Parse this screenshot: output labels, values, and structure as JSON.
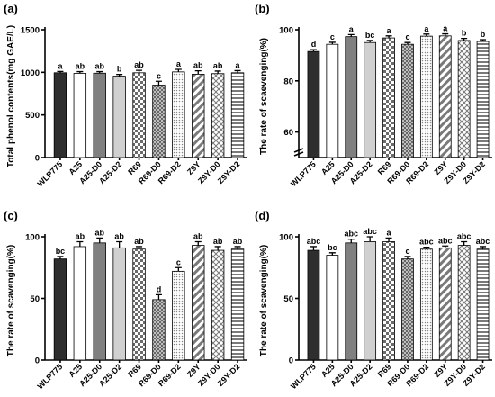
{
  "figure": {
    "colors": {
      "WLP775": "#2e2e2e",
      "A25": "#ffffff",
      "A25-D0": "#808080",
      "A25-D2": "#d0d0d0",
      "R69": "#b5b5b5",
      "R69-D0": "#c8c8c8",
      "R69-D2": "#e4e4e4",
      "Z9Y": "#ffffff",
      "Z9Y-D0": "#ffffff",
      "Z9Y-D2": "#ffffff"
    },
    "patterns": {
      "WLP775": "solid",
      "A25": "solid",
      "A25-D0": "solid",
      "A25-D2": "solid",
      "R69": "checker",
      "R69-D0": "crosshatch-dense",
      "R69-D2": "dots",
      "Z9Y": "diagonal-stripes",
      "Z9Y-D0": "large-crosshatch",
      "Z9Y-D2": "horizontal-stripes"
    }
  },
  "chart_data": [
    {
      "type": "bar",
      "panel_label": "(a)",
      "ylabel": "Total phenol contents(mg GAE/L)",
      "ylim": [
        0,
        1500
      ],
      "yticks": [
        0,
        500,
        1000,
        1500
      ],
      "categories": [
        "WLP775",
        "A25",
        "A25-D0",
        "A25-D2",
        "R69",
        "R69-D0",
        "R69-D2",
        "Z9Y",
        "Z9Y-D0",
        "Z9Y-D2"
      ],
      "values": [
        995,
        988,
        990,
        955,
        995,
        850,
        1005,
        978,
        985,
        995
      ],
      "errors": [
        15,
        20,
        18,
        20,
        28,
        45,
        30,
        40,
        30,
        25
      ],
      "labels": [
        "a",
        "ab",
        "ab",
        "b",
        "ab",
        "c",
        "a",
        "ab",
        "ab",
        "a"
      ]
    },
    {
      "type": "bar",
      "panel_label": "(b)",
      "ylabel": "The rate of scaevenging(%)",
      "ylim": [
        50,
        100
      ],
      "yticks": [
        60,
        80,
        100
      ],
      "axis_break": true,
      "categories": [
        "WLP775",
        "A25",
        "A25-D0",
        "A25-D2",
        "R69",
        "R69-D0",
        "R69-D2",
        "Z9Y",
        "Z9Y-D0",
        "Z9Y-D2"
      ],
      "values": [
        91.5,
        94.3,
        97.3,
        95.0,
        96.8,
        94.3,
        97.5,
        97.6,
        95.8,
        95.4
      ],
      "errors": [
        0.7,
        0.8,
        0.8,
        0.8,
        0.8,
        0.7,
        0.8,
        0.8,
        0.8,
        0.7
      ],
      "labels": [
        "d",
        "c",
        "a",
        "bc",
        "a",
        "c",
        "a",
        "a",
        "b",
        "b"
      ]
    },
    {
      "type": "bar",
      "panel_label": "(c)",
      "ylabel": "The rate of scavenging(%)",
      "ylim": [
        0,
        100
      ],
      "yticks": [
        0,
        50,
        100
      ],
      "categories": [
        "WLP775",
        "A25",
        "A25-D0",
        "A25-D2",
        "R69",
        "R69-D0",
        "R69-D2",
        "Z9Y",
        "Z9Y-D0",
        "Z9Y-D2"
      ],
      "values": [
        82,
        92,
        95,
        91,
        90,
        49,
        72,
        93,
        89,
        90
      ],
      "errors": [
        2,
        4,
        4,
        5,
        2,
        4,
        3,
        3,
        3,
        2
      ],
      "labels": [
        "bc",
        "ab",
        "ab",
        "ab",
        "ab",
        "d",
        "c",
        "ab",
        "ab",
        "ab"
      ]
    },
    {
      "type": "bar",
      "panel_label": "(d)",
      "ylabel": "The rate of scavenging(%)",
      "ylim": [
        0,
        100
      ],
      "yticks": [
        0,
        50,
        100
      ],
      "categories": [
        "WLP775",
        "A25",
        "A25-D0",
        "A25-D2",
        "R69",
        "R69-D0",
        "R69-D2",
        "Z9Y",
        "Z9Y-D0",
        "Z9Y-D2"
      ],
      "values": [
        89,
        85,
        95,
        96,
        96,
        82,
        90,
        91,
        93,
        90
      ],
      "errors": [
        3,
        2,
        3,
        4,
        3,
        2,
        1.5,
        1.5,
        3,
        2
      ],
      "labels": [
        "abc",
        "bc",
        "abc",
        "abc",
        "a",
        "c",
        "abc",
        "abc",
        "abc",
        "abc"
      ]
    }
  ]
}
